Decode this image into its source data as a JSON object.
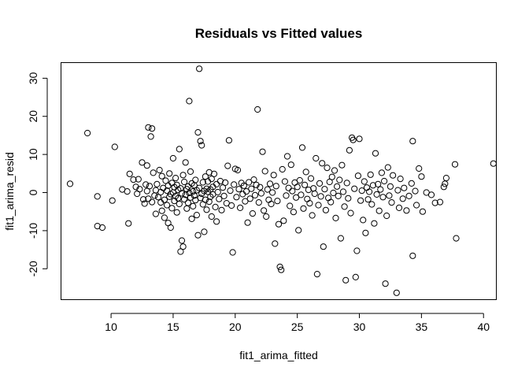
{
  "chart_data": {
    "type": "scatter",
    "title": "Residuals vs Fitted values",
    "xlabel": "fit1_arima_fitted",
    "ylabel": "fit1_arima_resid",
    "xlim": [
      6.0,
      41.0
    ],
    "ylim": [
      -28.0,
      34.0
    ],
    "xticks": [
      10,
      15,
      20,
      25,
      30,
      35,
      40
    ],
    "yticks": [
      -20,
      -10,
      0,
      10,
      20,
      30
    ],
    "grid": false,
    "legend": "none",
    "marker": "open-circle",
    "color": "#000000",
    "points": [
      [
        6.7,
        2.3
      ],
      [
        8.1,
        15.6
      ],
      [
        8.9,
        -1.0
      ],
      [
        8.9,
        -8.8
      ],
      [
        9.3,
        -9.2
      ],
      [
        10.1,
        -2.1
      ],
      [
        10.3,
        12.0
      ],
      [
        10.9,
        0.8
      ],
      [
        11.3,
        0.3
      ],
      [
        11.4,
        -8.1
      ],
      [
        11.5,
        4.9
      ],
      [
        11.8,
        3.4
      ],
      [
        12.0,
        1.5
      ],
      [
        12.1,
        -0.3
      ],
      [
        12.2,
        3.5
      ],
      [
        12.3,
        0.9
      ],
      [
        12.5,
        7.9
      ],
      [
        12.6,
        -1.8
      ],
      [
        12.7,
        -2.9
      ],
      [
        12.8,
        2.1
      ],
      [
        12.9,
        0.4
      ],
      [
        12.9,
        7.1
      ],
      [
        13.0,
        -1.6
      ],
      [
        13.0,
        17.1
      ],
      [
        13.1,
        1.7
      ],
      [
        13.2,
        14.7
      ],
      [
        13.3,
        16.8
      ],
      [
        13.3,
        -2.5
      ],
      [
        13.4,
        5.2
      ],
      [
        13.5,
        -0.8
      ],
      [
        13.6,
        0.6
      ],
      [
        13.6,
        -5.6
      ],
      [
        13.7,
        2.2
      ],
      [
        13.8,
        -1.2
      ],
      [
        13.9,
        5.9
      ],
      [
        14.0,
        0.1
      ],
      [
        14.0,
        -2.6
      ],
      [
        14.1,
        4.3
      ],
      [
        14.1,
        -4.8
      ],
      [
        14.2,
        1.2
      ],
      [
        14.3,
        -1.9
      ],
      [
        14.3,
        -6.6
      ],
      [
        14.4,
        3.1
      ],
      [
        14.5,
        0.5
      ],
      [
        14.5,
        -3.3
      ],
      [
        14.6,
        -8.0
      ],
      [
        14.6,
        1.8
      ],
      [
        14.7,
        -1.1
      ],
      [
        14.7,
        5.0
      ],
      [
        14.8,
        -0.4
      ],
      [
        14.8,
        -9.2
      ],
      [
        14.9,
        2.5
      ],
      [
        14.9,
        -4.1
      ],
      [
        15.0,
        0.0
      ],
      [
        15.0,
        9.0
      ],
      [
        15.1,
        -2.2
      ],
      [
        15.1,
        1.4
      ],
      [
        15.2,
        3.8
      ],
      [
        15.2,
        -0.9
      ],
      [
        15.3,
        -5.2
      ],
      [
        15.3,
        2.0
      ],
      [
        15.4,
        -1.5
      ],
      [
        15.4,
        0.7
      ],
      [
        15.5,
        11.4
      ],
      [
        15.5,
        -3.0
      ],
      [
        15.6,
        1.1
      ],
      [
        15.6,
        -15.5
      ],
      [
        15.7,
        -12.6
      ],
      [
        15.7,
        -0.2
      ],
      [
        15.8,
        4.6
      ],
      [
        15.8,
        -14.2
      ],
      [
        15.9,
        -1.8
      ],
      [
        15.9,
        2.8
      ],
      [
        16.0,
        -0.6
      ],
      [
        16.0,
        7.9
      ],
      [
        16.1,
        0.9
      ],
      [
        16.1,
        -4.2
      ],
      [
        16.2,
        1.6
      ],
      [
        16.2,
        -2.7
      ],
      [
        16.3,
        24.0
      ],
      [
        16.3,
        -0.1
      ],
      [
        16.4,
        5.5
      ],
      [
        16.4,
        -1.3
      ],
      [
        16.5,
        2.4
      ],
      [
        16.5,
        -6.9
      ],
      [
        16.6,
        0.3
      ],
      [
        16.6,
        -3.6
      ],
      [
        16.7,
        1.9
      ],
      [
        16.7,
        -0.8
      ],
      [
        16.8,
        3.3
      ],
      [
        16.8,
        -2.0
      ],
      [
        16.9,
        0.6
      ],
      [
        16.9,
        -5.9
      ],
      [
        17.0,
        15.8
      ],
      [
        17.0,
        -11.2
      ],
      [
        17.1,
        32.5
      ],
      [
        17.1,
        1.2
      ],
      [
        17.2,
        -1.4
      ],
      [
        17.2,
        13.5
      ],
      [
        17.3,
        12.4
      ],
      [
        17.3,
        -0.3
      ],
      [
        17.4,
        2.7
      ],
      [
        17.4,
        -3.1
      ],
      [
        17.5,
        0.4
      ],
      [
        17.5,
        -10.3
      ],
      [
        17.6,
        4.2
      ],
      [
        17.6,
        -1.9
      ],
      [
        17.7,
        1.0
      ],
      [
        17.7,
        -4.5
      ],
      [
        17.8,
        2.9
      ],
      [
        17.8,
        0.2
      ],
      [
        17.9,
        -2.4
      ],
      [
        17.9,
        5.3
      ],
      [
        18.0,
        0.8
      ],
      [
        18.0,
        -1.1
      ],
      [
        18.1,
        3.6
      ],
      [
        18.1,
        -6.3
      ],
      [
        18.2,
        1.5
      ],
      [
        18.2,
        -0.5
      ],
      [
        18.3,
        4.9
      ],
      [
        18.4,
        -3.8
      ],
      [
        18.5,
        2.2
      ],
      [
        18.5,
        -7.6
      ],
      [
        18.6,
        0.1
      ],
      [
        18.7,
        -1.7
      ],
      [
        18.8,
        3.0
      ],
      [
        18.9,
        -4.6
      ],
      [
        19.0,
        1.3
      ],
      [
        19.1,
        -0.9
      ],
      [
        19.2,
        2.6
      ],
      [
        19.3,
        -2.8
      ],
      [
        19.4,
        7.0
      ],
      [
        19.5,
        13.7
      ],
      [
        19.6,
        0.5
      ],
      [
        19.7,
        -3.4
      ],
      [
        19.8,
        -15.7
      ],
      [
        19.9,
        2.1
      ],
      [
        20.0,
        6.2
      ],
      [
        20.1,
        -1.2
      ],
      [
        20.2,
        5.9
      ],
      [
        20.3,
        0.9
      ],
      [
        20.4,
        -4.0
      ],
      [
        20.5,
        2.5
      ],
      [
        20.6,
        -0.4
      ],
      [
        20.7,
        1.8
      ],
      [
        20.8,
        -2.3
      ],
      [
        20.9,
        0.3
      ],
      [
        21.0,
        -7.9
      ],
      [
        21.1,
        2.7
      ],
      [
        21.2,
        -1.6
      ],
      [
        21.3,
        1.0
      ],
      [
        21.4,
        -5.5
      ],
      [
        21.5,
        3.4
      ],
      [
        21.6,
        -0.7
      ],
      [
        21.7,
        2.0
      ],
      [
        21.8,
        21.8
      ],
      [
        21.9,
        -2.6
      ],
      [
        22.0,
        1.4
      ],
      [
        22.1,
        -0.2
      ],
      [
        22.2,
        10.7
      ],
      [
        22.3,
        -4.7
      ],
      [
        22.4,
        5.6
      ],
      [
        22.5,
        -6.3
      ],
      [
        22.6,
        0.8
      ],
      [
        22.7,
        -1.9
      ],
      [
        22.8,
        2.3
      ],
      [
        22.9,
        -3.0
      ],
      [
        23.0,
        0.0
      ],
      [
        23.1,
        4.6
      ],
      [
        23.2,
        -13.4
      ],
      [
        23.3,
        1.7
      ],
      [
        23.4,
        -2.2
      ],
      [
        23.5,
        -8.3
      ],
      [
        23.6,
        -19.5
      ],
      [
        23.7,
        -20.3
      ],
      [
        23.8,
        6.1
      ],
      [
        23.9,
        -7.4
      ],
      [
        24.0,
        2.9
      ],
      [
        24.1,
        -0.8
      ],
      [
        24.2,
        9.5
      ],
      [
        24.3,
        1.2
      ],
      [
        24.4,
        -3.5
      ],
      [
        24.5,
        7.3
      ],
      [
        24.6,
        0.4
      ],
      [
        24.7,
        -5.1
      ],
      [
        24.8,
        2.6
      ],
      [
        24.9,
        -1.3
      ],
      [
        25.0,
        1.5
      ],
      [
        25.1,
        -9.9
      ],
      [
        25.2,
        3.2
      ],
      [
        25.3,
        -0.6
      ],
      [
        25.4,
        11.8
      ],
      [
        25.5,
        -4.2
      ],
      [
        25.6,
        2.0
      ],
      [
        25.7,
        5.4
      ],
      [
        25.8,
        -1.7
      ],
      [
        25.9,
        0.7
      ],
      [
        26.0,
        -2.8
      ],
      [
        26.1,
        3.7
      ],
      [
        26.2,
        -6.0
      ],
      [
        26.3,
        1.1
      ],
      [
        26.4,
        -0.3
      ],
      [
        26.5,
        9.0
      ],
      [
        26.6,
        -21.4
      ],
      [
        26.7,
        -3.3
      ],
      [
        26.8,
        2.4
      ],
      [
        26.9,
        -1.0
      ],
      [
        27.0,
        7.7
      ],
      [
        27.1,
        -14.2
      ],
      [
        27.2,
        0.9
      ],
      [
        27.3,
        -4.6
      ],
      [
        27.4,
        6.5
      ],
      [
        27.5,
        -1.4
      ],
      [
        27.6,
        2.8
      ],
      [
        27.7,
        -2.5
      ],
      [
        27.8,
        4.1
      ],
      [
        27.9,
        -0.1
      ],
      [
        28.0,
        5.8
      ],
      [
        28.1,
        -6.7
      ],
      [
        28.2,
        1.6
      ],
      [
        28.3,
        -0.9
      ],
      [
        28.4,
        3.3
      ],
      [
        28.5,
        -12.0
      ],
      [
        28.6,
        7.2
      ],
      [
        28.7,
        0.2
      ],
      [
        28.8,
        -3.7
      ],
      [
        28.9,
        -23.0
      ],
      [
        29.0,
        2.5
      ],
      [
        29.1,
        -1.5
      ],
      [
        29.2,
        11.1
      ],
      [
        29.3,
        -5.4
      ],
      [
        29.4,
        14.4
      ],
      [
        29.5,
        13.8
      ],
      [
        29.6,
        1.0
      ],
      [
        29.7,
        -22.2
      ],
      [
        29.8,
        -15.3
      ],
      [
        29.9,
        4.4
      ],
      [
        30.0,
        14.1
      ],
      [
        30.1,
        -2.1
      ],
      [
        30.2,
        0.5
      ],
      [
        30.3,
        -7.2
      ],
      [
        30.4,
        2.9
      ],
      [
        30.5,
        -10.6
      ],
      [
        30.6,
        1.3
      ],
      [
        30.7,
        -1.8
      ],
      [
        30.8,
        0.2
      ],
      [
        30.9,
        4.7
      ],
      [
        31.0,
        -3.1
      ],
      [
        31.1,
        1.9
      ],
      [
        31.2,
        -8.1
      ],
      [
        31.3,
        10.3
      ],
      [
        31.4,
        -0.5
      ],
      [
        31.5,
        2.2
      ],
      [
        31.6,
        -4.8
      ],
      [
        31.7,
        0.8
      ],
      [
        31.8,
        5.2
      ],
      [
        31.9,
        -1.2
      ],
      [
        32.0,
        3.0
      ],
      [
        32.1,
        -23.9
      ],
      [
        32.2,
        -6.1
      ],
      [
        32.3,
        6.6
      ],
      [
        32.4,
        -0.8
      ],
      [
        32.5,
        1.6
      ],
      [
        32.6,
        -2.6
      ],
      [
        32.7,
        4.5
      ],
      [
        33.0,
        -26.3
      ],
      [
        33.1,
        0.6
      ],
      [
        33.2,
        -4.0
      ],
      [
        33.3,
        3.6
      ],
      [
        33.5,
        -1.6
      ],
      [
        33.6,
        1.2
      ],
      [
        33.8,
        -4.7
      ],
      [
        34.0,
        -0.9
      ],
      [
        34.2,
        2.4
      ],
      [
        34.3,
        13.5
      ],
      [
        34.3,
        -16.6
      ],
      [
        34.5,
        0.4
      ],
      [
        34.6,
        -3.3
      ],
      [
        34.8,
        6.3
      ],
      [
        35.0,
        4.2
      ],
      [
        35.1,
        -5.0
      ],
      [
        35.4,
        0.0
      ],
      [
        35.8,
        -0.6
      ],
      [
        36.1,
        -2.7
      ],
      [
        36.5,
        -2.5
      ],
      [
        36.8,
        1.5
      ],
      [
        36.9,
        2.3
      ],
      [
        37.0,
        3.8
      ],
      [
        37.7,
        7.4
      ],
      [
        37.8,
        -12.0
      ],
      [
        40.8,
        7.6
      ]
    ]
  }
}
